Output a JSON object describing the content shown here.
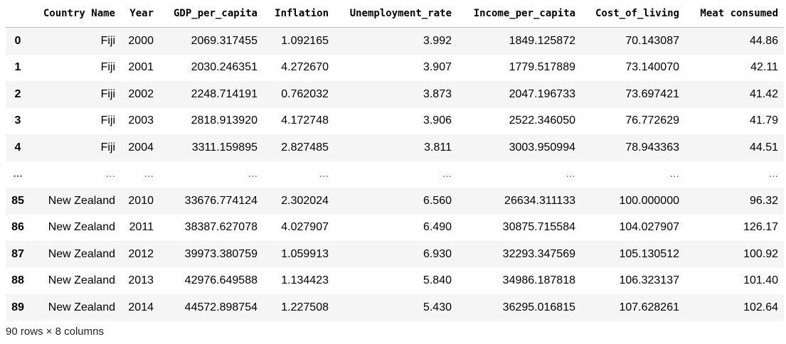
{
  "columns": [
    "",
    "Country Name",
    "Year",
    "GDP_per_capita",
    "Inflation",
    "Unemployment_rate",
    "Income_per_capita",
    "Cost_of_living",
    "Meat consumed"
  ],
  "rows": [
    {
      "index": "0",
      "cells": [
        "Fiji",
        "2000",
        "2069.317455",
        "1.092165",
        "3.992",
        "1849.125872",
        "70.143087",
        "44.86"
      ]
    },
    {
      "index": "1",
      "cells": [
        "Fiji",
        "2001",
        "2030.246351",
        "4.272670",
        "3.907",
        "1779.517889",
        "73.140070",
        "42.11"
      ]
    },
    {
      "index": "2",
      "cells": [
        "Fiji",
        "2002",
        "2248.714191",
        "0.762032",
        "3.873",
        "2047.196733",
        "73.697421",
        "41.42"
      ]
    },
    {
      "index": "3",
      "cells": [
        "Fiji",
        "2003",
        "2818.913920",
        "4.172748",
        "3.906",
        "2522.346050",
        "76.772629",
        "41.79"
      ]
    },
    {
      "index": "4",
      "cells": [
        "Fiji",
        "2004",
        "3311.159895",
        "2.827485",
        "3.811",
        "3003.950994",
        "78.943363",
        "44.51"
      ]
    },
    {
      "index": "...",
      "cells": [
        "...",
        "...",
        "...",
        "...",
        "...",
        "...",
        "...",
        "..."
      ],
      "ellipsis": true
    },
    {
      "index": "85",
      "cells": [
        "New Zealand",
        "2010",
        "33676.774124",
        "2.302024",
        "6.560",
        "26634.311133",
        "100.000000",
        "96.32"
      ]
    },
    {
      "index": "86",
      "cells": [
        "New Zealand",
        "2011",
        "38387.627078",
        "4.027907",
        "6.490",
        "30875.715584",
        "104.027907",
        "126.17"
      ]
    },
    {
      "index": "87",
      "cells": [
        "New Zealand",
        "2012",
        "39973.380759",
        "1.059913",
        "6.930",
        "32293.347569",
        "105.130512",
        "100.92"
      ]
    },
    {
      "index": "88",
      "cells": [
        "New Zealand",
        "2013",
        "42976.649588",
        "1.134423",
        "5.840",
        "34986.187818",
        "106.323137",
        "101.40"
      ]
    },
    {
      "index": "89",
      "cells": [
        "New Zealand",
        "2014",
        "44572.898754",
        "1.227508",
        "5.430",
        "36295.016815",
        "107.628261",
        "102.64"
      ]
    }
  ],
  "footer": "90 rows × 8 columns"
}
